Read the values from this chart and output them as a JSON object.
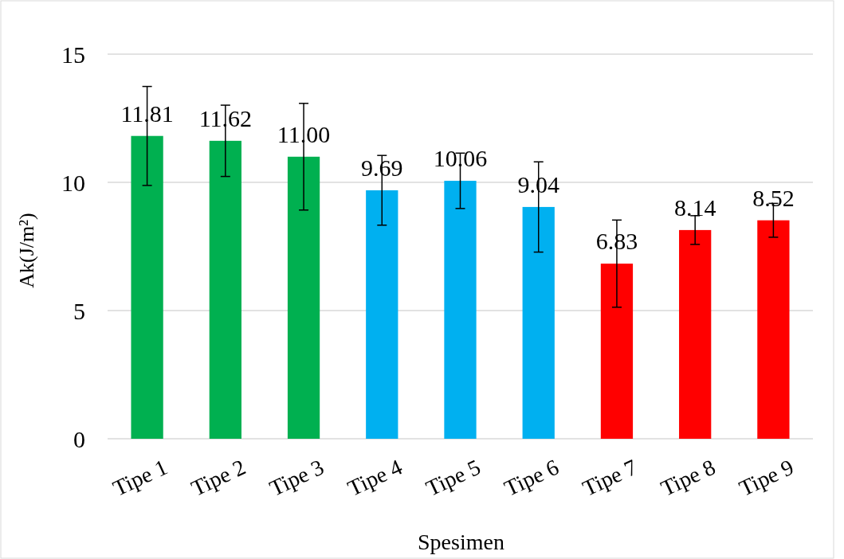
{
  "chart_data": {
    "type": "bar",
    "xlabel": "Spesimen",
    "ylabel": "Ak(J/m²)",
    "categories": [
      "Tipe 1",
      "Tipe 2",
      "Tipe 3",
      "Tipe 4",
      "Tipe 5",
      "Tipe 6",
      "Tipe 7",
      "Tipe 8",
      "Tipe 9"
    ],
    "values": [
      11.81,
      11.62,
      11.0,
      9.69,
      10.06,
      9.04,
      6.83,
      8.14,
      8.52
    ],
    "value_labels": [
      "11.81",
      "11.62",
      "11.00",
      "9.69",
      "10.06",
      "9.04",
      "6.83",
      "8.14",
      "8.52"
    ],
    "colors": [
      "#00b050",
      "#00b050",
      "#00b050",
      "#00b0f0",
      "#00b0f0",
      "#00b0f0",
      "#ff0000",
      "#ff0000",
      "#ff0000"
    ],
    "errors": [
      1.93,
      1.39,
      2.08,
      1.36,
      1.08,
      1.76,
      1.7,
      0.56,
      0.66
    ],
    "ylim": [
      0,
      15
    ],
    "yticks": [
      0,
      5,
      10,
      15
    ],
    "grid": "y"
  }
}
